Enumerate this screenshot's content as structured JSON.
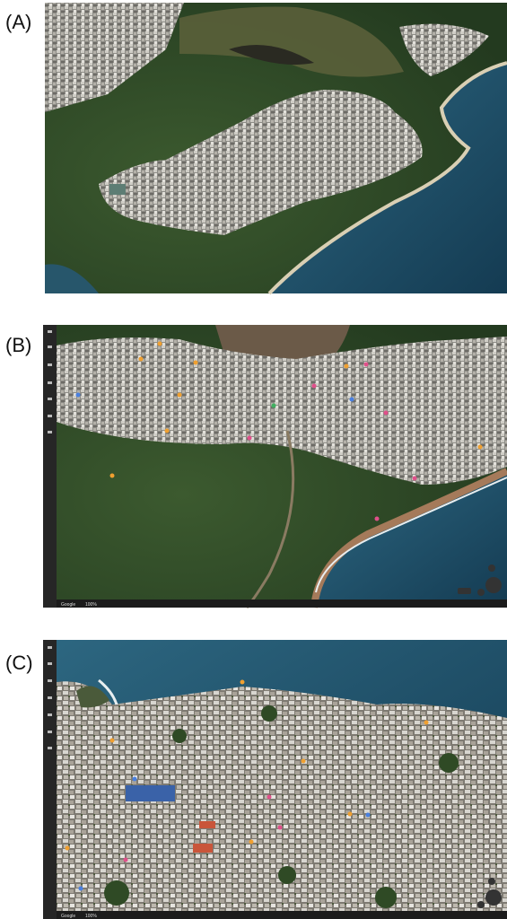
{
  "panels": [
    {
      "label": "(A)"
    },
    {
      "label": "(B)",
      "footer": {
        "brand": "Google",
        "zoom": "100%"
      }
    },
    {
      "label": "(C)",
      "footer": {
        "brand": "Google",
        "zoom": "100%"
      }
    }
  ]
}
